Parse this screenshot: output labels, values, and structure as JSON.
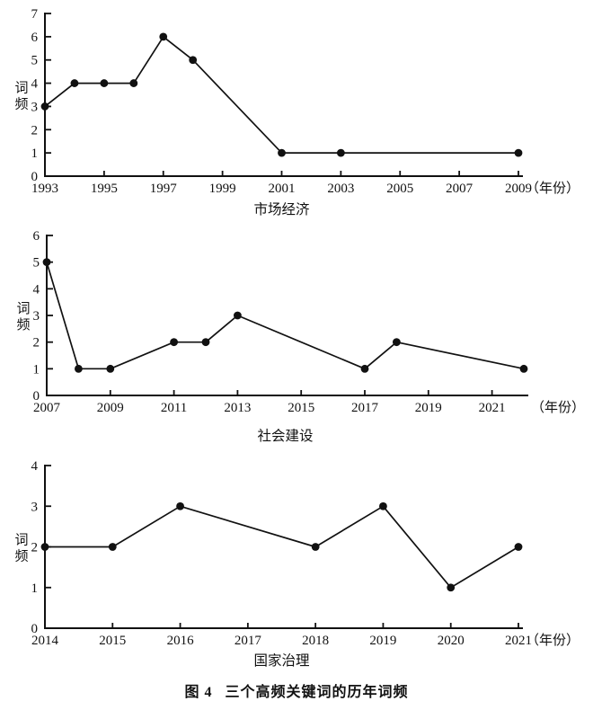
{
  "caption": {
    "label": "图 4",
    "text": "三个高频关键词的历年词频"
  },
  "colors": {
    "ink": "#111111",
    "background": "#ffffff"
  },
  "chart_data": [
    {
      "type": "line",
      "title": "市场经济",
      "ylabel": "词频",
      "x_unit_label": "（年份）",
      "xlim": [
        1993,
        2009
      ],
      "ylim": [
        0,
        7
      ],
      "xticks": [
        1993,
        1995,
        1997,
        1999,
        2001,
        2003,
        2005,
        2007,
        2009
      ],
      "yticks": [
        0,
        1,
        2,
        3,
        4,
        5,
        6,
        7
      ],
      "grid": false,
      "legend": "none",
      "x": [
        1993,
        1994,
        1995,
        1996,
        1997,
        1998,
        2001,
        2003,
        2009
      ],
      "values": [
        3,
        4,
        4,
        4,
        6,
        5,
        1,
        1,
        1
      ]
    },
    {
      "type": "line",
      "title": "社会建设",
      "ylabel": "词频",
      "x_unit_label": "（年份）",
      "xlim": [
        2007,
        2022
      ],
      "ylim": [
        0,
        6
      ],
      "xticks": [
        2007,
        2009,
        2011,
        2013,
        2015,
        2017,
        2019,
        2021
      ],
      "yticks": [
        0,
        1,
        2,
        3,
        4,
        5,
        6
      ],
      "grid": false,
      "legend": "none",
      "x": [
        2007,
        2008,
        2009,
        2011,
        2012,
        2013,
        2017,
        2018,
        2022
      ],
      "values": [
        5,
        1,
        1,
        2,
        2,
        3,
        1,
        2,
        1
      ]
    },
    {
      "type": "line",
      "title": "国家治理",
      "ylabel": "词频",
      "x_unit_label": "（年份）",
      "xlim": [
        2014,
        2021
      ],
      "ylim": [
        0,
        4
      ],
      "xticks": [
        2014,
        2015,
        2016,
        2017,
        2018,
        2019,
        2020,
        2021
      ],
      "yticks": [
        0,
        1,
        2,
        3,
        4
      ],
      "grid": false,
      "legend": "none",
      "x": [
        2014,
        2015,
        2016,
        2018,
        2019,
        2020,
        2021
      ],
      "values": [
        2,
        2,
        3,
        2,
        3,
        1,
        2
      ]
    }
  ]
}
